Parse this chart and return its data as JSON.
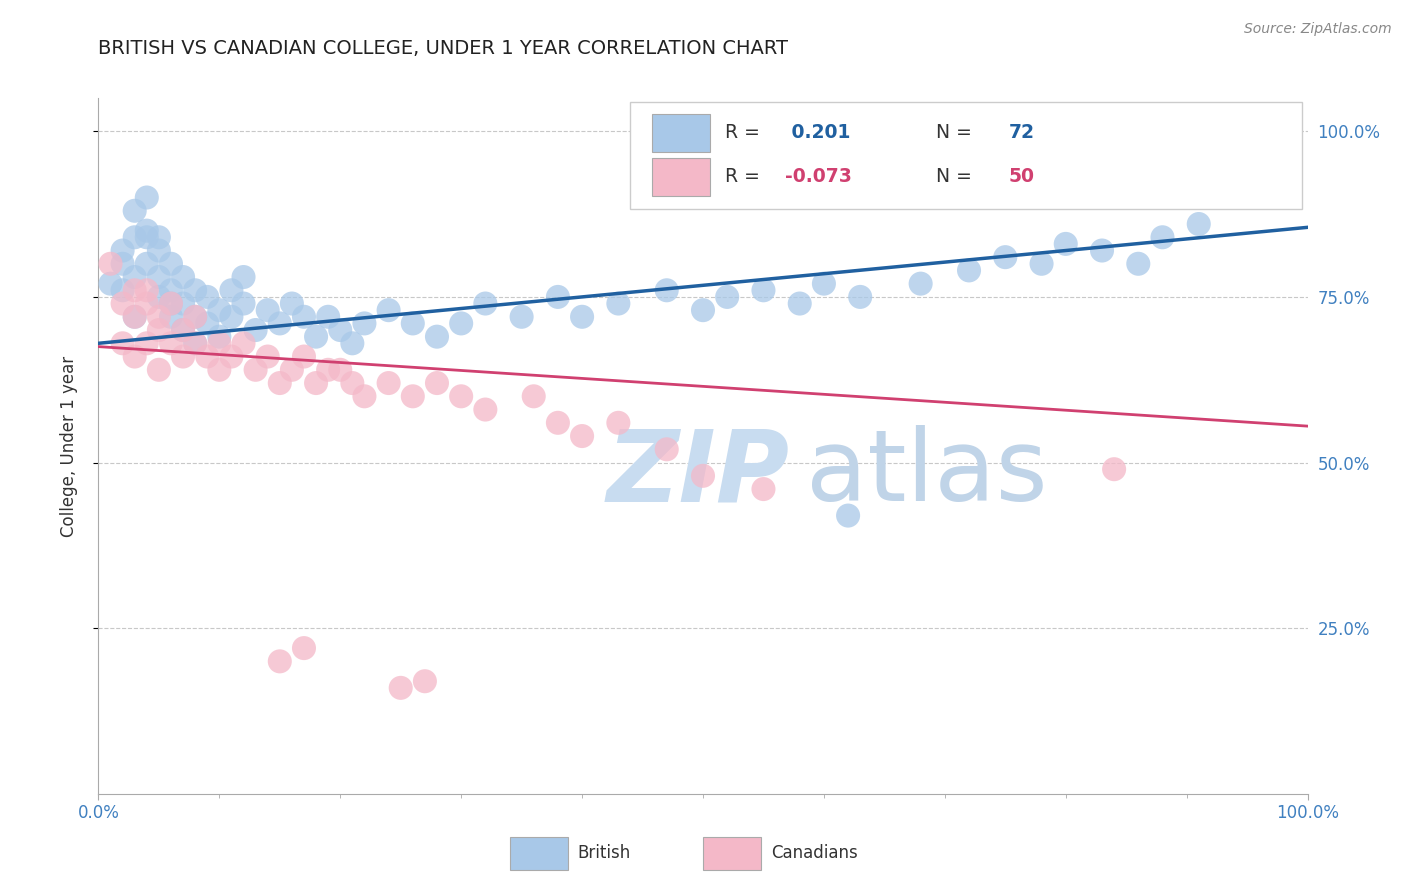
{
  "title": "BRITISH VS CANADIAN COLLEGE, UNDER 1 YEAR CORRELATION CHART",
  "source_text": "Source: ZipAtlas.com",
  "ylabel": "College, Under 1 year",
  "xlim": [
    0.0,
    1.0
  ],
  "ylim": [
    0.0,
    1.05
  ],
  "british_R": 0.201,
  "british_N": 72,
  "canadian_R": -0.073,
  "canadian_N": 50,
  "british_color": "#a8c8e8",
  "british_line_color": "#2060a0",
  "canadian_color": "#f4b8c8",
  "canadian_line_color": "#d04070",
  "tick_color": "#4080c0",
  "background_color": "#ffffff",
  "grid_color": "#c8c8c8",
  "title_fontsize": 14,
  "axis_label_fontsize": 12,
  "tick_fontsize": 12,
  "british_line_y0": 0.68,
  "british_line_y1": 0.855,
  "canadian_line_y0": 0.675,
  "canadian_line_y1": 0.555,
  "british_x": [
    0.01,
    0.02,
    0.02,
    0.02,
    0.03,
    0.03,
    0.03,
    0.03,
    0.04,
    0.04,
    0.04,
    0.04,
    0.05,
    0.05,
    0.05,
    0.05,
    0.06,
    0.06,
    0.06,
    0.06,
    0.07,
    0.07,
    0.07,
    0.08,
    0.08,
    0.08,
    0.09,
    0.09,
    0.1,
    0.1,
    0.11,
    0.11,
    0.12,
    0.12,
    0.13,
    0.14,
    0.15,
    0.16,
    0.17,
    0.18,
    0.19,
    0.2,
    0.21,
    0.22,
    0.24,
    0.26,
    0.28,
    0.3,
    0.32,
    0.35,
    0.38,
    0.4,
    0.43,
    0.47,
    0.5,
    0.52,
    0.55,
    0.58,
    0.6,
    0.63,
    0.68,
    0.72,
    0.75,
    0.78,
    0.8,
    0.83,
    0.86,
    0.88,
    0.91,
    0.95,
    0.62,
    0.97
  ],
  "british_y": [
    0.77,
    0.8,
    0.76,
    0.82,
    0.78,
    0.72,
    0.84,
    0.88,
    0.84,
    0.8,
    0.85,
    0.9,
    0.82,
    0.78,
    0.75,
    0.84,
    0.8,
    0.76,
    0.74,
    0.72,
    0.78,
    0.74,
    0.7,
    0.76,
    0.72,
    0.68,
    0.75,
    0.71,
    0.73,
    0.69,
    0.76,
    0.72,
    0.78,
    0.74,
    0.7,
    0.73,
    0.71,
    0.74,
    0.72,
    0.69,
    0.72,
    0.7,
    0.68,
    0.71,
    0.73,
    0.71,
    0.69,
    0.71,
    0.74,
    0.72,
    0.75,
    0.72,
    0.74,
    0.76,
    0.73,
    0.75,
    0.76,
    0.74,
    0.77,
    0.75,
    0.77,
    0.79,
    0.81,
    0.8,
    0.83,
    0.82,
    0.8,
    0.84,
    0.86,
    0.9,
    0.42,
    0.93
  ],
  "canadian_x": [
    0.01,
    0.02,
    0.02,
    0.03,
    0.03,
    0.03,
    0.04,
    0.04,
    0.04,
    0.05,
    0.05,
    0.05,
    0.06,
    0.06,
    0.07,
    0.07,
    0.08,
    0.08,
    0.09,
    0.1,
    0.1,
    0.11,
    0.12,
    0.13,
    0.14,
    0.15,
    0.16,
    0.17,
    0.18,
    0.19,
    0.2,
    0.21,
    0.22,
    0.24,
    0.26,
    0.28,
    0.3,
    0.32,
    0.36,
    0.38,
    0.4,
    0.43,
    0.47,
    0.5,
    0.55,
    0.84,
    0.15,
    0.17,
    0.25,
    0.27
  ],
  "canadian_y": [
    0.8,
    0.74,
    0.68,
    0.76,
    0.72,
    0.66,
    0.74,
    0.68,
    0.76,
    0.7,
    0.64,
    0.72,
    0.68,
    0.74,
    0.7,
    0.66,
    0.68,
    0.72,
    0.66,
    0.68,
    0.64,
    0.66,
    0.68,
    0.64,
    0.66,
    0.62,
    0.64,
    0.66,
    0.62,
    0.64,
    0.64,
    0.62,
    0.6,
    0.62,
    0.6,
    0.62,
    0.6,
    0.58,
    0.6,
    0.56,
    0.54,
    0.56,
    0.52,
    0.48,
    0.46,
    0.49,
    0.2,
    0.22,
    0.16,
    0.17
  ],
  "watermark_zip": "ZIP",
  "watermark_atlas": "atlas",
  "watermark_color_zip": "#c8dcf0",
  "watermark_color_atlas": "#c0d4e8",
  "watermark_fontsize": 72
}
